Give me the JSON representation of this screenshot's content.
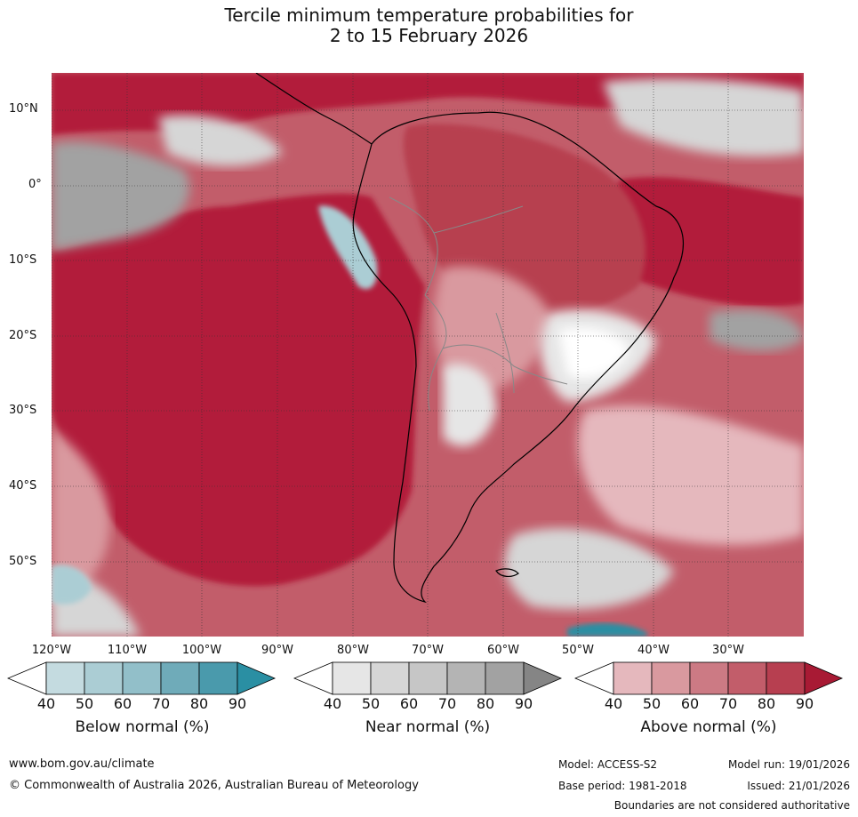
{
  "title_line1": "Tercile minimum temperature probabilities for",
  "title_line2": "2 to 15 February 2026",
  "lat_labels": [
    "10°N",
    "0°",
    "10°S",
    "20°S",
    "30°S",
    "40°S",
    "50°S"
  ],
  "lon_labels": [
    "120°W",
    "110°W",
    "100°W",
    "90°W",
    "80°W",
    "70°W",
    "60°W",
    "50°W",
    "40°W",
    "30°W"
  ],
  "colorbars": [
    {
      "name": "below",
      "title": "Below normal (%)",
      "ticks": [
        "40",
        "50",
        "60",
        "70",
        "80",
        "90"
      ],
      "colors": [
        "#c4dbe0",
        "#abcdd4",
        "#92bfc9",
        "#6fabb9",
        "#4a9aac",
        "#2a8fa3"
      ]
    },
    {
      "name": "near",
      "title": "Near normal (%)",
      "ticks": [
        "40",
        "50",
        "60",
        "70",
        "80",
        "90"
      ],
      "colors": [
        "#e6e6e6",
        "#d6d6d6",
        "#c6c6c6",
        "#b4b4b4",
        "#a2a2a2",
        "#858585"
      ]
    },
    {
      "name": "above",
      "title": "Above normal (%)",
      "ticks": [
        "40",
        "50",
        "60",
        "70",
        "80",
        "90"
      ],
      "colors": [
        "#e5b8bd",
        "#d9999f",
        "#cc7a84",
        "#c25d6a",
        "#b73f50",
        "#a81a34"
      ]
    }
  ],
  "footer": {
    "url": "www.bom.gov.au/climate",
    "copyright": "© Commonwealth of Australia 2026, Australian Bureau of Meteorology",
    "model": "Model: ACCESS-S2",
    "base_period": "Base period: 1981-2018",
    "model_run": "Model run: 19/01/2026",
    "issued": "Issued: 21/01/2026",
    "disclaimer": "Boundaries are not considered authoritative"
  }
}
